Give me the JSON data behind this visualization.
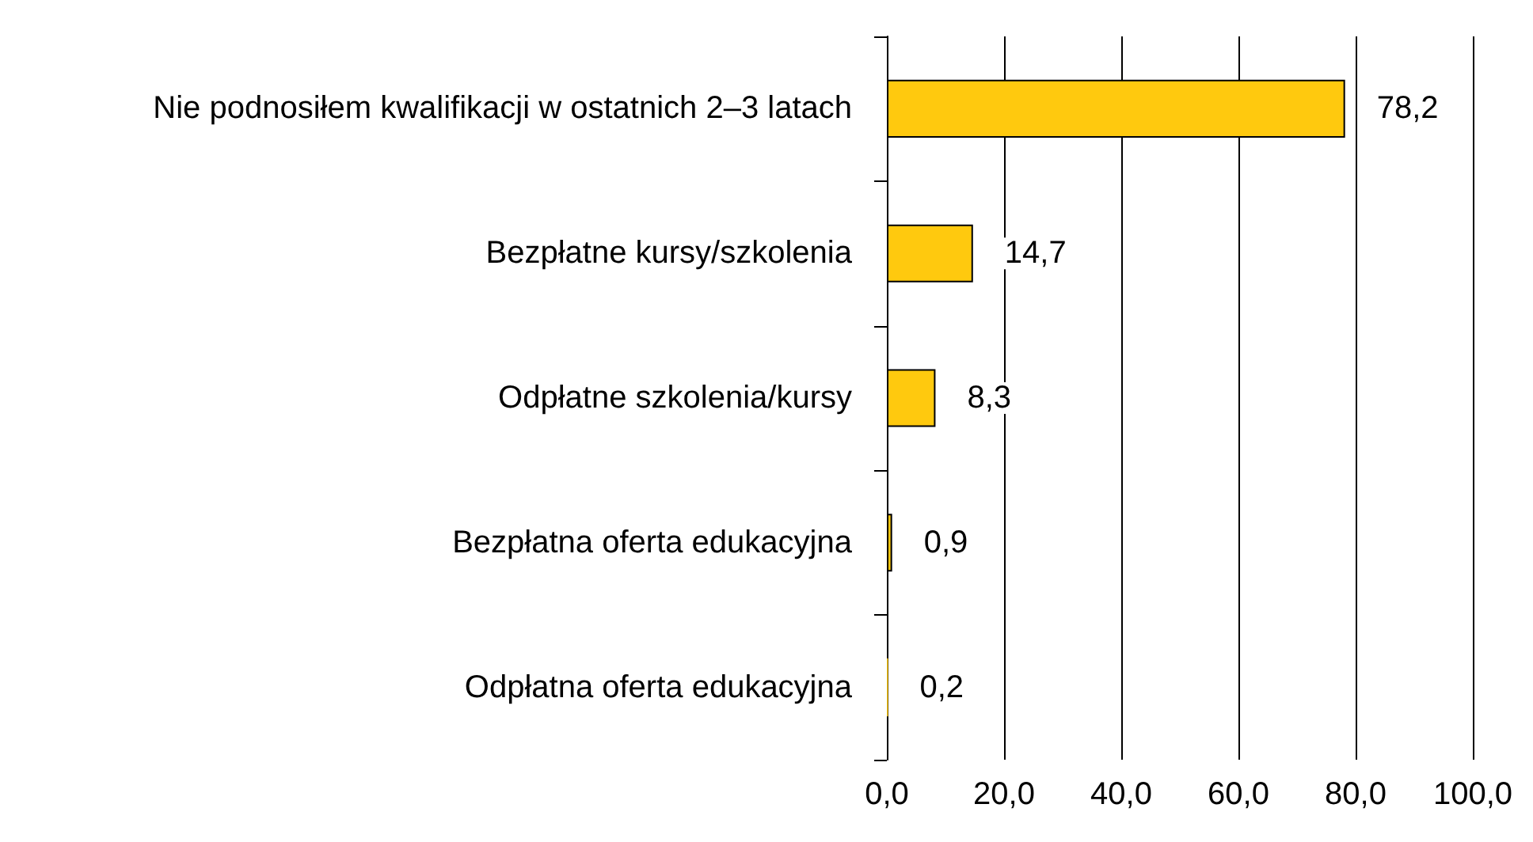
{
  "chart_data": {
    "type": "bar",
    "orientation": "horizontal",
    "categories": [
      "Nie podnosiłem kwalifikacji w ostatnich 2–3 latach",
      "Bezpłatne kursy/szkolenia",
      "Odpłatne szkolenia/kursy",
      "Bezpłatna oferta edukacyjna",
      "Odpłatna oferta edukacyjna"
    ],
    "values": [
      78.2,
      14.7,
      8.3,
      0.9,
      0.2
    ],
    "value_labels": [
      "78,2",
      "14,7",
      "8,3",
      "0,9",
      "0,2"
    ],
    "color": "#ffc90e",
    "xlim": [
      0,
      100
    ],
    "xticks": [
      {
        "value": 0,
        "label": "0,0"
      },
      {
        "value": 20,
        "label": "20,0"
      },
      {
        "value": 40,
        "label": "40,0"
      },
      {
        "value": 60,
        "label": "60,0"
      },
      {
        "value": 80,
        "label": "80,0"
      },
      {
        "value": 100,
        "label": "100,0"
      }
    ],
    "grid": "x"
  }
}
